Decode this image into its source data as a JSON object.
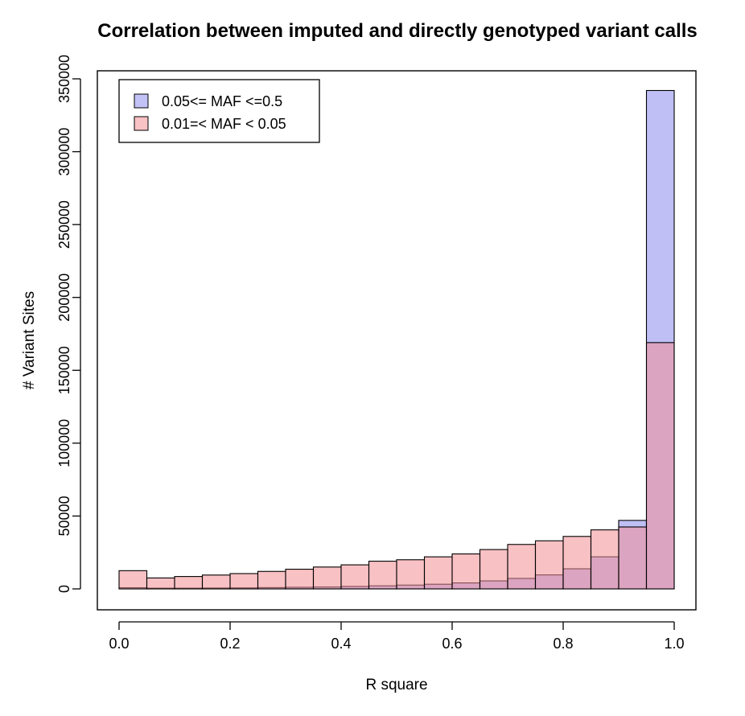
{
  "chart_data": {
    "type": "bar",
    "title": "Correlation between imputed and directly genotyped variant calls",
    "xlabel": "R square",
    "ylabel": "# Variant Sites",
    "xlim": [
      0.0,
      1.0
    ],
    "ylim": [
      0,
      350000
    ],
    "x_ticks": [
      "0.0",
      "0.2",
      "0.4",
      "0.6",
      "0.8",
      "1.0"
    ],
    "y_ticks": [
      "0",
      "50000",
      "100000",
      "150000",
      "200000",
      "250000",
      "300000",
      "350000"
    ],
    "bin_edges": [
      0.0,
      0.05,
      0.1,
      0.15,
      0.2,
      0.25,
      0.3,
      0.35,
      0.4,
      0.45,
      0.5,
      0.55,
      0.6,
      0.65,
      0.7,
      0.75,
      0.8,
      0.85,
      0.9,
      0.95,
      1.0
    ],
    "legend_position": "top-left",
    "series": [
      {
        "name": "0.05<= MAF <=0.5",
        "color": "#bfbff5",
        "values": [
          800,
          500,
          500,
          600,
          700,
          900,
          1100,
          1300,
          1700,
          2100,
          2600,
          3200,
          4100,
          5500,
          7200,
          9600,
          13800,
          22000,
          47000,
          342000
        ]
      },
      {
        "name": "0.01=< MAF < 0.05",
        "color": "#f9bfc1",
        "values": [
          12500,
          7500,
          8500,
          9500,
          10500,
          12000,
          13500,
          15000,
          16500,
          19000,
          20000,
          22000,
          24000,
          27000,
          30500,
          33000,
          36000,
          40500,
          42500,
          169000
        ]
      }
    ]
  }
}
